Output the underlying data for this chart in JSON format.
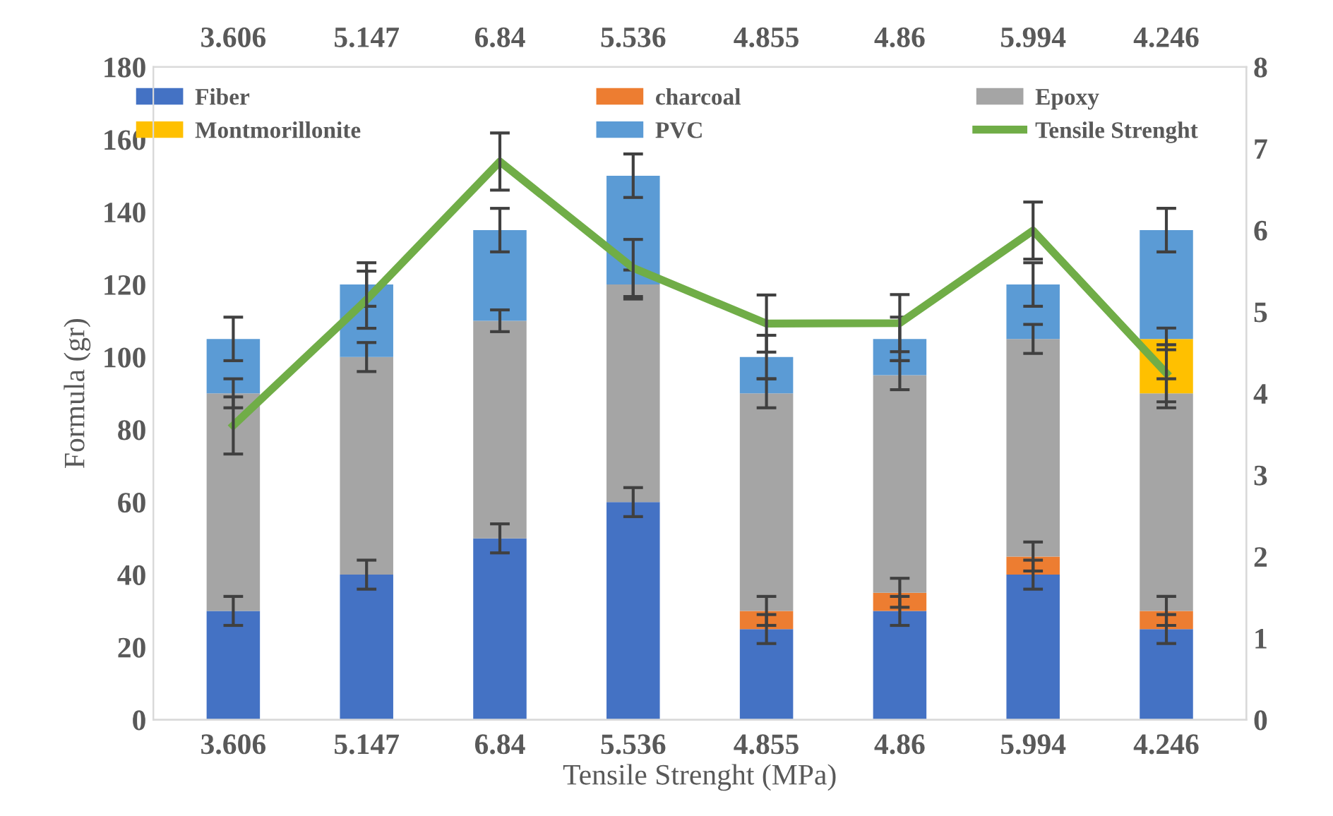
{
  "chart_data": {
    "type": "bar",
    "stacked": true,
    "xlabel": "Tensile Strenght (MPa)",
    "ylabel": "Formula (gr)",
    "categories": [
      "3.606",
      "5.147",
      "6.84",
      "5.536",
      "4.855",
      "4.86",
      "5.994",
      "4.246"
    ],
    "ylim": [
      0,
      180
    ],
    "yticks": [
      0,
      20,
      40,
      60,
      80,
      100,
      120,
      140,
      160,
      180
    ],
    "y2lim": [
      0,
      8
    ],
    "y2ticks": [
      0,
      1,
      2,
      3,
      4,
      5,
      6,
      7,
      8
    ],
    "grid": false,
    "legend": "top",
    "series": [
      {
        "name": "Fiber",
        "color": "#4472c4",
        "values": [
          30,
          40,
          50,
          60,
          25,
          30,
          40,
          25
        ],
        "errors": [
          4,
          4,
          4,
          4,
          4,
          4,
          4,
          4
        ]
      },
      {
        "name": "charcoal",
        "color": "#ed7d31",
        "values": [
          0,
          0,
          0,
          0,
          5,
          5,
          5,
          5
        ],
        "errors": [
          null,
          null,
          null,
          null,
          4,
          4,
          4,
          4
        ]
      },
      {
        "name": "Epoxy",
        "color": "#a5a5a5",
        "values": [
          60,
          60,
          60,
          60,
          60,
          60,
          60,
          60
        ],
        "errors": [
          4,
          4,
          3,
          4,
          4,
          4,
          4,
          4
        ]
      },
      {
        "name": "Montmorillonite",
        "color": "#ffc000",
        "values": [
          0,
          0,
          0,
          0,
          0,
          0,
          0,
          15
        ],
        "errors": [
          null,
          null,
          null,
          null,
          null,
          null,
          null,
          3
        ]
      },
      {
        "name": "PVC",
        "color": "#5b9bd5",
        "values": [
          15,
          20,
          25,
          30,
          10,
          10,
          15,
          30
        ],
        "errors": [
          6,
          6,
          6,
          6,
          6,
          6,
          6,
          6
        ]
      },
      {
        "name": "Tensile Strenght",
        "type": "line",
        "axis": "y2",
        "color": "#70ad47",
        "values": [
          3.606,
          5.147,
          6.84,
          5.536,
          4.855,
          4.86,
          5.994,
          4.246
        ],
        "errors": [
          0.35,
          0.35,
          0.35,
          0.35,
          0.35,
          0.35,
          0.35,
          0.35
        ],
        "marker": "none",
        "line_style": "solid"
      }
    ]
  }
}
